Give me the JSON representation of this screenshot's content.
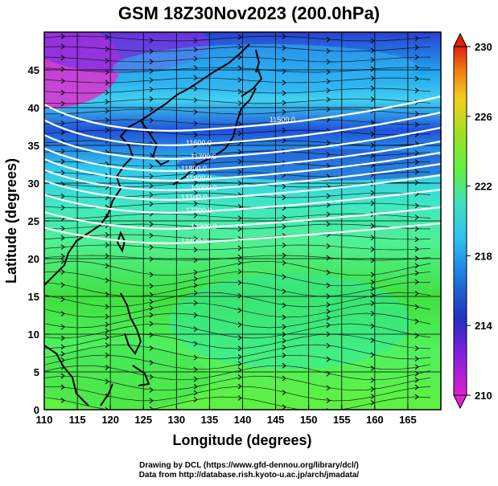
{
  "title": "GSM 18Z30Nov2023 (200.0hPa)",
  "map": {
    "xlabel": "Longitude (degrees)",
    "ylabel": "Latitude  (degrees)",
    "lon_range": [
      110,
      170
    ],
    "lat_range": [
      0,
      50
    ],
    "lon_ticks": [
      "110",
      "115",
      "120",
      "125",
      "130",
      "135",
      "140",
      "145",
      "150",
      "155",
      "160",
      "165"
    ],
    "lat_ticks": [
      "0",
      "5",
      "10",
      "15",
      "20",
      "25",
      "30",
      "35",
      "40",
      "45"
    ],
    "grid": true,
    "colorbar": {
      "position": "right",
      "ticks": [
        "210",
        "214",
        "218",
        "222",
        "226",
        "230"
      ],
      "range": [
        210,
        230
      ],
      "colors": [
        "#e020d0",
        "#2030c0",
        "#30b0f0",
        "#30e0c0",
        "#60f040",
        "#a0e020",
        "#f0d020",
        "#f07010",
        "#e02010"
      ]
    },
    "contours": [
      {
        "label": "11500.0",
        "color": "#ffffff"
      },
      {
        "label": "11600.0",
        "color": "#ffffff"
      },
      {
        "label": "11700.0",
        "color": "#ffffff"
      },
      {
        "label": "11800.0",
        "color": "#ffffff"
      },
      {
        "label": "11900.0",
        "color": "#ffffff"
      },
      {
        "label": "12000.0",
        "color": "#ffffff"
      },
      {
        "label": "12100.0",
        "color": "#ffffff"
      },
      {
        "label": "12200.0",
        "color": "#ffffff"
      },
      {
        "label": "12300.0",
        "color": "#ffffff"
      },
      {
        "label": "12400.0",
        "color": "#ffffff"
      }
    ]
  },
  "credits": {
    "line1": "Drawing by DCL (https://www.gfd-dennou.org/library/dcl/)",
    "line2": "Data from http://database.rish.kyoto-u.ac.jp/arch/jmadata/"
  }
}
